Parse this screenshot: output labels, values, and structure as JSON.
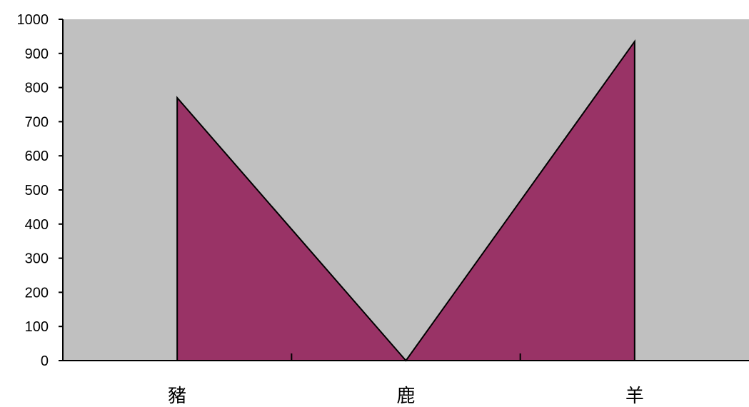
{
  "chart_data": {
    "type": "area",
    "categories": [
      "豬",
      "鹿",
      "羊"
    ],
    "series": [
      {
        "values": [
          770,
          0,
          935
        ]
      }
    ],
    "ylim": [
      0,
      1000
    ],
    "yticks": [
      0,
      100,
      200,
      300,
      400,
      500,
      600,
      700,
      800,
      900,
      1000
    ],
    "grid": false,
    "legend": "none",
    "colors": {
      "plot_background": "#c0c0c0",
      "area_fill": "#993366",
      "line": "#000000"
    }
  }
}
